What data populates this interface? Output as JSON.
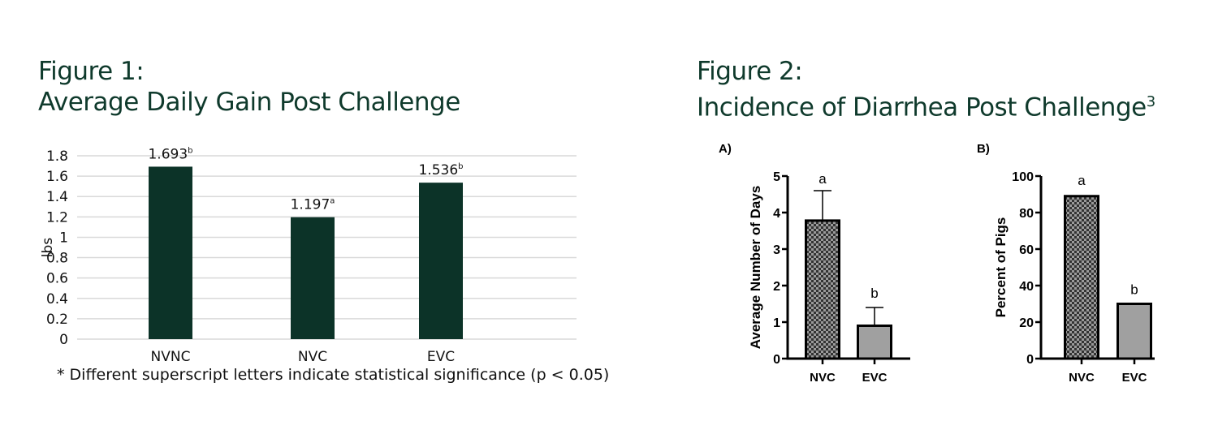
{
  "figure1": {
    "title_line1": "Figure 1:",
    "title_line2": "Average Daily Gain Post Challenge",
    "footnote": "* Different superscript letters indicate statistical significance (p < 0.05)"
  },
  "figure2": {
    "title_line1": "Figure 2:",
    "title_line2": "Incidence of Diarrhea Post Challenge",
    "title_sup": "3"
  },
  "colors": {
    "title": "#0f3a2c",
    "bar1": "#0c3328",
    "bar_gray": "#a0a0a0",
    "grid": "#d9d9d9"
  },
  "chart_data": [
    {
      "type": "bar",
      "title": "Average Daily Gain Post Challenge",
      "ylabel": "lbs",
      "xlabel": "",
      "categories": [
        "NVNC",
        "NVC",
        "EVC"
      ],
      "values": [
        1.693,
        1.197,
        1.536
      ],
      "data_labels": [
        "1.693",
        "1.197",
        "1.536"
      ],
      "superscripts": [
        "b",
        "a",
        "b"
      ],
      "ylim": [
        0,
        1.8
      ],
      "yticks": [
        "0",
        "0.2",
        "0.4",
        "0.6",
        "0.8",
        "1",
        "1.2",
        "1.4",
        "1.6",
        "1.8"
      ],
      "grid": true
    },
    {
      "type": "bar",
      "panel": "A)",
      "ylabel": "Average Number of Days",
      "categories": [
        "NVC",
        "EVC"
      ],
      "values": [
        3.78,
        0.9
      ],
      "error_upper": [
        4.6,
        1.4
      ],
      "letters": [
        "a",
        "b"
      ],
      "ylim": [
        0,
        5
      ],
      "yticks": [
        "0",
        "1",
        "2",
        "3",
        "4",
        "5"
      ],
      "grid": false
    },
    {
      "type": "bar",
      "panel": "B)",
      "ylabel": "Percent of Pigs",
      "categories": [
        "NVC",
        "EVC"
      ],
      "values": [
        89,
        30
      ],
      "letters": [
        "a",
        "b"
      ],
      "ylim": [
        0,
        100
      ],
      "yticks": [
        "0",
        "20",
        "40",
        "60",
        "80",
        "100"
      ],
      "grid": false
    }
  ]
}
